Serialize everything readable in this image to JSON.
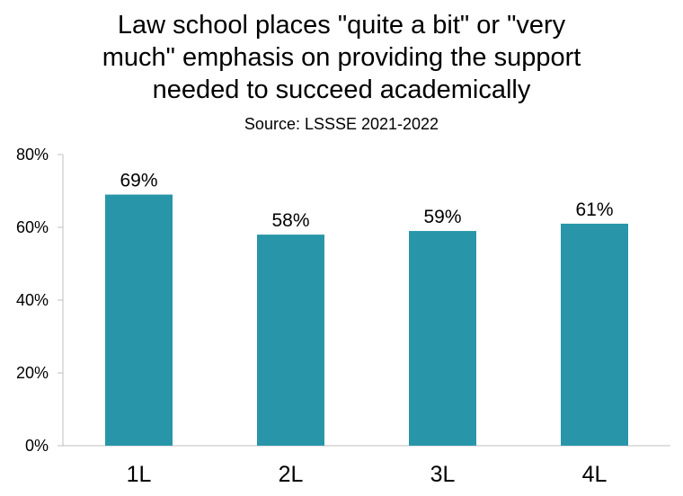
{
  "chart_data": {
    "type": "bar",
    "title_lines": [
      "Law school places \"quite a bit\" or \"very",
      "much\" emphasis on providing the support",
      "needed to succeed academically"
    ],
    "subtitle": "Source: LSSSE 2021-2022",
    "categories": [
      "1L",
      "2L",
      "3L",
      "4L"
    ],
    "values": [
      69,
      58,
      59,
      61
    ],
    "data_labels": [
      "69%",
      "58%",
      "59%",
      "61%"
    ],
    "ylim": [
      0,
      80
    ],
    "yticks": [
      0,
      20,
      40,
      60,
      80
    ],
    "ytick_labels": [
      "0%",
      "20%",
      "40%",
      "60%",
      "80%"
    ],
    "bar_color": "#2896A8",
    "grid": false,
    "legend": "none"
  }
}
